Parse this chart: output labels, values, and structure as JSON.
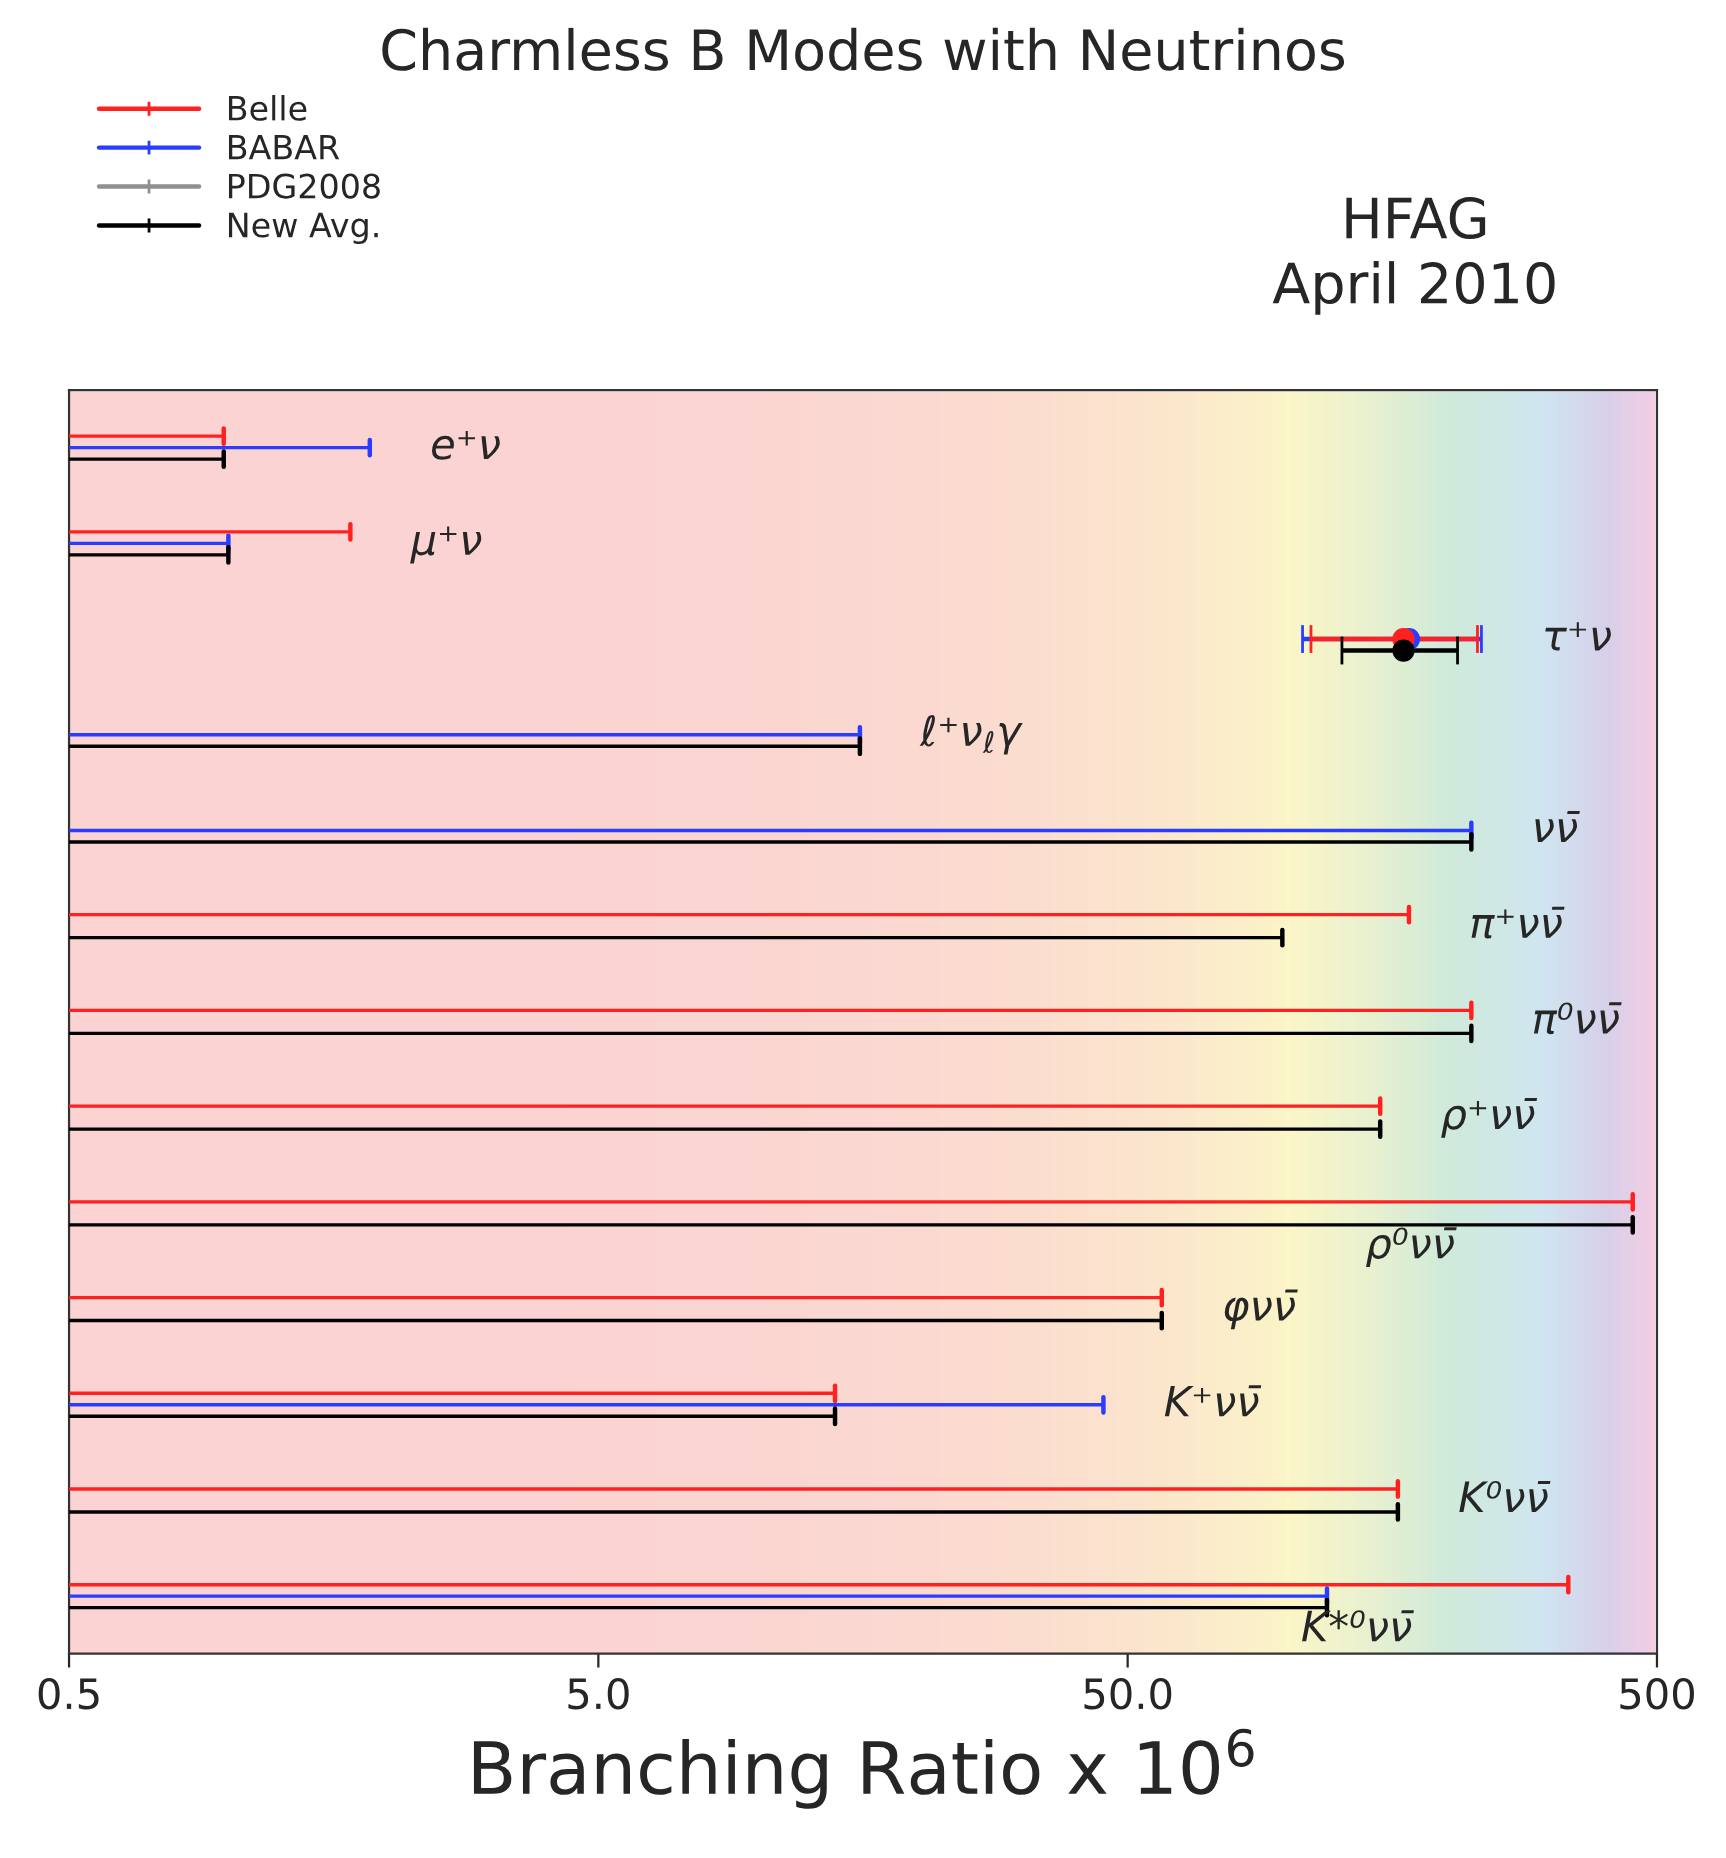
{
  "chart_data": {
    "type": "bar",
    "orientation": "horizontal",
    "log": "x",
    "title": "Charmless B Modes with Neutrinos",
    "xlabel": "Branching Ratio x 10$^{6}$",
    "annotations": [
      "HFAG",
      "April 2010"
    ],
    "categories": [
      "e⁺ν",
      "μ⁺ν",
      "τ⁺ν",
      "ℓ⁺ν$_{ℓ}$γ",
      "νν̄",
      "π⁺νν̄",
      "π⁰νν̄",
      "ρ⁺νν̄",
      "ρ⁰νν̄",
      "φνν̄",
      "K⁺νν̄",
      "K⁰νν̄",
      "K*⁰νν̄"
    ],
    "series": [
      {
        "name": "Belle",
        "color": "#ff2020",
        "values": [
          0.98,
          1.7,
          null,
          null,
          null,
          170,
          223,
          150,
          450,
          58,
          14,
          162,
          340
        ]
      },
      {
        "name": "BABAR",
        "color": "#2a3cff",
        "values": [
          1.85,
          1.0,
          null,
          15.6,
          223,
          null,
          null,
          null,
          null,
          null,
          45,
          null,
          119
        ]
      },
      {
        "name": "PDG2008",
        "color": "#909090",
        "values": [
          null,
          null,
          null,
          null,
          null,
          null,
          null,
          null,
          null,
          null,
          null,
          null,
          null
        ]
      },
      {
        "name": "New Avg.",
        "color": "#000000",
        "values": [
          0.98,
          1.0,
          null,
          15.6,
          223,
          98,
          223,
          150,
          450,
          58,
          14,
          162,
          119
        ]
      },
      {
        "type": "scatter",
        "color": "#2a3cff",
        "x": [
          "τ⁺ν"
        ],
        "values": [
          170
        ],
        "errors": [
          [
            107,
            233
          ]
        ]
      },
      {
        "type": "scatter",
        "color": "#ff2020",
        "x": [
          "τ⁺ν"
        ],
        "values": [
          166
        ],
        "errors": [
          [
            111,
            229
          ]
        ]
      },
      {
        "type": "scatter",
        "color": "#000000",
        "x": [
          "τ⁺ν"
        ],
        "values": [
          166
        ],
        "errors": [
          [
            127,
            210
          ]
        ]
      }
    ],
    "xlim": [
      0.5,
      500
    ],
    "xticks": [
      0.5,
      {
        "value": 5,
        "label": "5.0"
      },
      {
        "value": 50,
        "label": "50.0"
      },
      500
    ],
    "tick_labels": "x",
    "legend": "top left"
  }
}
